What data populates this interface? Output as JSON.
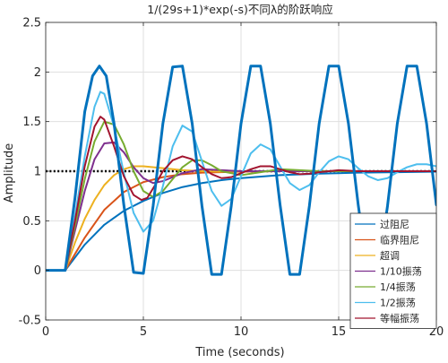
{
  "chart_data": {
    "type": "line",
    "title": "1/(29s+1)*exp(-s)不同λ的阶跃响应",
    "xlabel": "Time (seconds)",
    "ylabel": "Amplitude",
    "xlim": [
      0,
      20
    ],
    "ylim": [
      -0.5,
      2.5
    ],
    "x_ticks": [
      "0",
      "5",
      "10",
      "15",
      "20"
    ],
    "y_ticks": [
      "-0.5",
      "0",
      "0.5",
      "1",
      "1.5",
      "2",
      "2.5"
    ],
    "grid": true,
    "legend_position": "bottom-right",
    "reference_line": {
      "y": 1,
      "style": "dotted",
      "color": "#000000"
    },
    "series": [
      {
        "name": "过阻尼",
        "color": "#0072BD",
        "x": [
          0,
          1,
          2,
          3,
          4,
          5,
          6,
          7,
          8,
          9,
          10,
          12,
          14,
          16,
          18,
          20
        ],
        "y": [
          0,
          0,
          0.26,
          0.46,
          0.6,
          0.7,
          0.78,
          0.84,
          0.88,
          0.91,
          0.93,
          0.96,
          0.975,
          0.985,
          0.99,
          0.995
        ]
      },
      {
        "name": "临界阻尼",
        "color": "#D95319",
        "x": [
          0,
          1,
          2,
          3,
          4,
          5,
          6,
          7,
          8,
          10,
          12,
          15,
          20
        ],
        "y": [
          0,
          0,
          0.33,
          0.61,
          0.79,
          0.89,
          0.94,
          0.97,
          0.985,
          0.995,
          1,
          1,
          1
        ]
      },
      {
        "name": "超调",
        "color": "#EDB120",
        "x": [
          0,
          1,
          1.5,
          2,
          2.5,
          3,
          3.5,
          4,
          4.5,
          5,
          6,
          7,
          8,
          9,
          10,
          12,
          15,
          20
        ],
        "y": [
          0,
          0,
          0.28,
          0.52,
          0.71,
          0.86,
          0.96,
          1.02,
          1.05,
          1.05,
          1.03,
          1.01,
          1.0,
          0.995,
          1.0,
          1.0,
          1.0,
          1.0
        ]
      },
      {
        "name": "1/10振荡",
        "color": "#7E2F8E",
        "x": [
          0,
          1,
          1.5,
          2,
          2.5,
          3,
          3.5,
          4,
          4.5,
          5,
          5.5,
          6,
          7,
          8,
          9,
          10,
          12,
          15,
          20
        ],
        "y": [
          0,
          0,
          0.4,
          0.8,
          1.12,
          1.28,
          1.29,
          1.19,
          1.04,
          0.93,
          0.88,
          0.9,
          0.98,
          1.02,
          1.01,
          1.0,
          1.0,
          1.0,
          1.0
        ]
      },
      {
        "name": "1/4振荡",
        "color": "#77AC30",
        "x": [
          0,
          1,
          1.5,
          2,
          2.5,
          3,
          3.5,
          4,
          4.5,
          5,
          5.5,
          6,
          6.5,
          7,
          7.5,
          8,
          8.5,
          9,
          10,
          11,
          12,
          13,
          14,
          16,
          20
        ],
        "y": [
          0,
          0,
          0.45,
          0.92,
          1.3,
          1.5,
          1.47,
          1.27,
          1.0,
          0.8,
          0.74,
          0.8,
          0.92,
          1.04,
          1.11,
          1.11,
          1.06,
          1.0,
          0.96,
          0.99,
          1.02,
          1.01,
          1.0,
          1.0,
          1.0
        ]
      },
      {
        "name": "1/2振荡",
        "color": "#4DBEEE",
        "x": [
          0,
          1,
          1.5,
          2,
          2.5,
          2.8,
          3,
          3.5,
          4,
          4.5,
          5,
          5.5,
          6,
          6.5,
          7,
          7.5,
          8,
          8.5,
          9,
          9.5,
          10,
          10.5,
          11,
          11.5,
          12,
          12.5,
          13,
          13.5,
          14,
          14.5,
          15,
          15.5,
          16,
          16.5,
          17,
          17.5,
          18,
          18.5,
          19,
          19.5,
          20
        ],
        "y": [
          0,
          0,
          0.55,
          1.15,
          1.65,
          1.8,
          1.78,
          1.45,
          0.98,
          0.58,
          0.39,
          0.5,
          0.85,
          1.25,
          1.46,
          1.4,
          1.1,
          0.8,
          0.65,
          0.72,
          0.95,
          1.18,
          1.27,
          1.22,
          1.05,
          0.88,
          0.81,
          0.86,
          0.99,
          1.1,
          1.15,
          1.12,
          1.03,
          0.95,
          0.91,
          0.93,
          0.99,
          1.04,
          1.07,
          1.07,
          1.05
        ]
      },
      {
        "name": "等幅振荡",
        "color": "#A2142F",
        "x": [
          0,
          1,
          1.5,
          2,
          2.5,
          2.8,
          3,
          3.5,
          4,
          4.5,
          4.9,
          5.2,
          5.6,
          6,
          6.5,
          7,
          7.5,
          8,
          8.5,
          9,
          9.5,
          10,
          10.5,
          11,
          11.5,
          12,
          12.5,
          13,
          13.5,
          14,
          15,
          16,
          18,
          20
        ],
        "y": [
          0,
          0,
          0.5,
          1.05,
          1.45,
          1.55,
          1.52,
          1.25,
          0.95,
          0.76,
          0.71,
          0.73,
          0.86,
          1.0,
          1.11,
          1.15,
          1.12,
          1.04,
          0.97,
          0.93,
          0.94,
          0.98,
          1.02,
          1.05,
          1.05,
          1.02,
          0.99,
          0.97,
          0.975,
          0.99,
          1.01,
          1.0,
          1.0,
          1.0
        ]
      },
      {
        "name": "",
        "color": "#0072BD",
        "legend": false,
        "style": "thick",
        "x": [
          0,
          1,
          1.5,
          2,
          2.4,
          2.75,
          3.1,
          3.5,
          4,
          4.5,
          5.0,
          5.5,
          6,
          6.5,
          7,
          7.5,
          8,
          8.5,
          9,
          9.5,
          10,
          10.5,
          11,
          11.5,
          12,
          12.5,
          13,
          13.5,
          14,
          14.5,
          15,
          15.5,
          16,
          16.5,
          17,
          17.5,
          18,
          18.5,
          19,
          19.5,
          20
        ],
        "y": [
          0,
          0,
          0.73,
          1.6,
          1.96,
          2.06,
          1.96,
          1.48,
          0.66,
          -0.02,
          -0.03,
          0.65,
          1.48,
          2.05,
          2.06,
          1.48,
          0.65,
          -0.04,
          -0.04,
          0.65,
          1.48,
          2.06,
          2.06,
          1.48,
          0.66,
          -0.04,
          -0.04,
          0.65,
          1.48,
          2.06,
          2.06,
          1.48,
          0.66,
          -0.04,
          -0.04,
          0.65,
          1.48,
          2.06,
          2.06,
          1.48,
          0.66
        ]
      }
    ]
  }
}
